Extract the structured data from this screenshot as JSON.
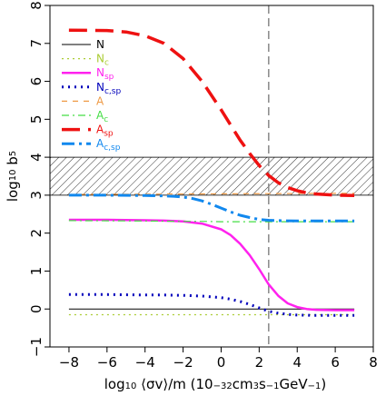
{
  "chart_data": {
    "type": "line",
    "xlabel_parts": [
      "log",
      "10",
      " ⟨σv⟩/m  (10",
      "−32",
      "cm",
      "3",
      "s",
      "−1",
      "GeV",
      "−1",
      ")"
    ],
    "ylabel_parts": [
      "log",
      "10",
      " b",
      "5"
    ],
    "xlim": [
      -9,
      8
    ],
    "ylim": [
      -1,
      8
    ],
    "xticks": [
      -8,
      -6,
      -4,
      -2,
      0,
      2,
      4,
      6,
      8
    ],
    "yticks": [
      -1,
      0,
      1,
      2,
      3,
      4,
      5,
      6,
      7,
      8
    ],
    "xtick_labels": [
      "−8",
      "−6",
      "−4",
      "−2",
      "0",
      "2",
      "4",
      "6",
      "8"
    ],
    "ytick_labels": [
      "−1",
      "0",
      "1",
      "2",
      "3",
      "4",
      "5",
      "6",
      "7",
      "8"
    ],
    "grid": false,
    "legend_position": "top-left",
    "vertical_line_x": 2.5,
    "hatched_band": [
      3.0,
      4.0
    ],
    "series": [
      {
        "name": "N",
        "sub": "",
        "color": "#000000",
        "dash": "",
        "width": 1,
        "x": [
          -8,
          7
        ],
        "y": [
          0,
          0
        ]
      },
      {
        "name": "N",
        "sub": "c",
        "color": "#aacc33",
        "dash": "2,4",
        "width": 1.2,
        "x": [
          -8,
          7
        ],
        "y": [
          -0.15,
          -0.15
        ]
      },
      {
        "name": "N",
        "sub": "sp",
        "color": "#ff22ee",
        "dash": "",
        "width": 2.5,
        "x": [
          -8,
          -6,
          -4,
          -3,
          -2,
          -1,
          0,
          0.5,
          1,
          1.5,
          2,
          2.5,
          3,
          3.5,
          4,
          4.5,
          5,
          6,
          7
        ],
        "y": [
          2.35,
          2.35,
          2.34,
          2.33,
          2.31,
          2.25,
          2.1,
          1.95,
          1.72,
          1.42,
          1.05,
          0.65,
          0.35,
          0.15,
          0.05,
          0.0,
          -0.02,
          -0.03,
          -0.03
        ]
      },
      {
        "name": "N",
        "sub": "c,sp",
        "color": "#0000bb",
        "dash": "2,5",
        "width": 3,
        "x": [
          -8,
          -6,
          -4,
          -3,
          -2,
          -1,
          0,
          0.5,
          1,
          1.5,
          2,
          2.5,
          3,
          3.5,
          4,
          5,
          6,
          7
        ],
        "y": [
          0.38,
          0.38,
          0.37,
          0.37,
          0.36,
          0.34,
          0.3,
          0.26,
          0.2,
          0.12,
          0.03,
          -0.06,
          -0.11,
          -0.14,
          -0.16,
          -0.17,
          -0.17,
          -0.17
        ]
      },
      {
        "name": "A",
        "sub": "",
        "color": "#ee9944",
        "dash": "6,6",
        "width": 1.2,
        "x": [
          -8,
          7
        ],
        "y": [
          3.02,
          3.05
        ]
      },
      {
        "name": "A",
        "sub": "c",
        "color": "#44dd44",
        "dash": "8,4,2,4",
        "width": 1.2,
        "x": [
          -8,
          -4,
          -2,
          -1,
          0,
          1,
          2,
          3,
          4,
          7
        ],
        "y": [
          2.33,
          2.32,
          2.31,
          2.31,
          2.3,
          2.3,
          2.3,
          2.3,
          2.3,
          2.3
        ]
      },
      {
        "name": "A",
        "sub": "sp",
        "color": "#ee1111",
        "dash": "20,9",
        "width": 3.5,
        "x": [
          -8,
          -6,
          -5,
          -4,
          -3,
          -2,
          -1,
          0,
          0.5,
          1,
          1.5,
          2,
          2.5,
          3,
          3.5,
          4,
          4.5,
          5,
          6,
          7
        ],
        "y": [
          7.35,
          7.34,
          7.3,
          7.2,
          7.0,
          6.6,
          6.0,
          5.25,
          4.85,
          4.45,
          4.1,
          3.78,
          3.52,
          3.33,
          3.2,
          3.12,
          3.06,
          3.03,
          3.0,
          2.99
        ]
      },
      {
        "name": "A",
        "sub": "c,sp",
        "color": "#1188ee",
        "dash": "14,5,3,5",
        "width": 3,
        "x": [
          -8,
          -6,
          -4,
          -3,
          -2.5,
          -2,
          -1.5,
          -1,
          -0.5,
          0,
          0.5,
          1,
          1.5,
          2,
          2.5,
          3,
          4,
          5,
          6,
          7
        ],
        "y": [
          3.0,
          3.0,
          2.99,
          2.98,
          2.97,
          2.95,
          2.91,
          2.85,
          2.76,
          2.66,
          2.56,
          2.47,
          2.41,
          2.36,
          2.34,
          2.33,
          2.32,
          2.32,
          2.32,
          2.32
        ]
      }
    ]
  }
}
